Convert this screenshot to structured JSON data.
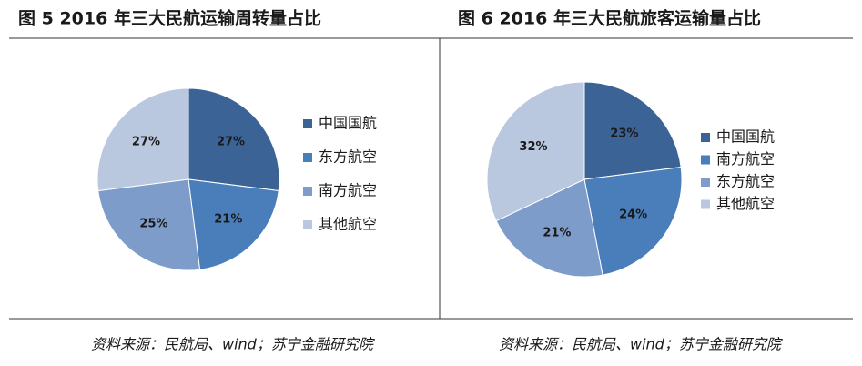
{
  "chart_data": [
    {
      "type": "pie",
      "title": "图 5   2016 年三大民航运输周转量占比",
      "categories": [
        "中国国航",
        "东方航空",
        "南方航空",
        "其他航空"
      ],
      "values": [
        27,
        21,
        25,
        27
      ],
      "value_labels": [
        "27%",
        "21%",
        "25%",
        "27%"
      ],
      "colors": [
        "#3b6396",
        "#4a7ebb",
        "#7e9cc9",
        "#b9c7df"
      ],
      "source": "资料来源：民航局、wind；苏宁金融研究院"
    },
    {
      "type": "pie",
      "title": "图 6   2016 年三大民航旅客运输量占比",
      "categories": [
        "中国国航",
        "南方航空",
        "东方航空",
        "其他航空"
      ],
      "values": [
        23,
        24,
        21,
        32
      ],
      "value_labels": [
        "23%",
        "24%",
        "21%",
        "32%"
      ],
      "colors": [
        "#3b6396",
        "#4a7ebb",
        "#7e9cc9",
        "#b9c7df"
      ],
      "source": "资料来源：民航局、wind；苏宁金融研究院"
    }
  ]
}
